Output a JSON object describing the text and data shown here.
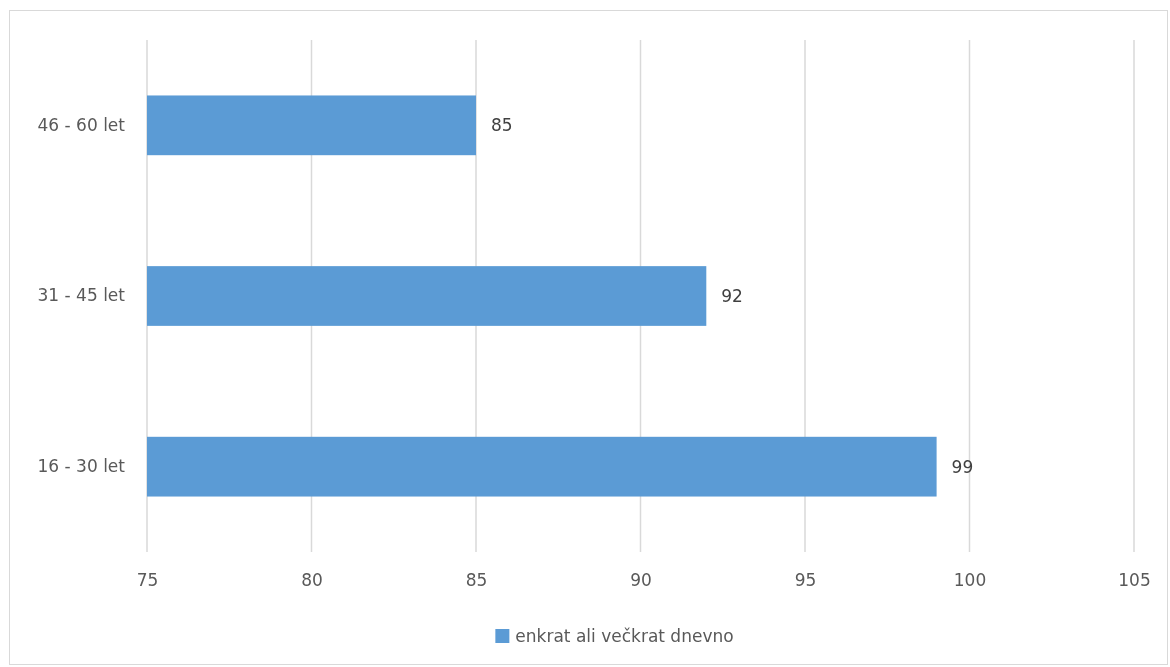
{
  "chart_data": {
    "type": "bar",
    "orientation": "horizontal",
    "categories": [
      "46 - 60 let",
      "31 - 45 let",
      "16 - 30 let"
    ],
    "series": [
      {
        "name": "enkrat ali večkrat dnevno",
        "color": "#5b9bd5",
        "values": [
          85,
          92,
          99
        ]
      }
    ],
    "xlim": [
      75,
      105
    ],
    "xticks": [
      75,
      80,
      85,
      90,
      95,
      100,
      105
    ],
    "grid": "x",
    "legend": "bottom",
    "data_labels": true
  }
}
